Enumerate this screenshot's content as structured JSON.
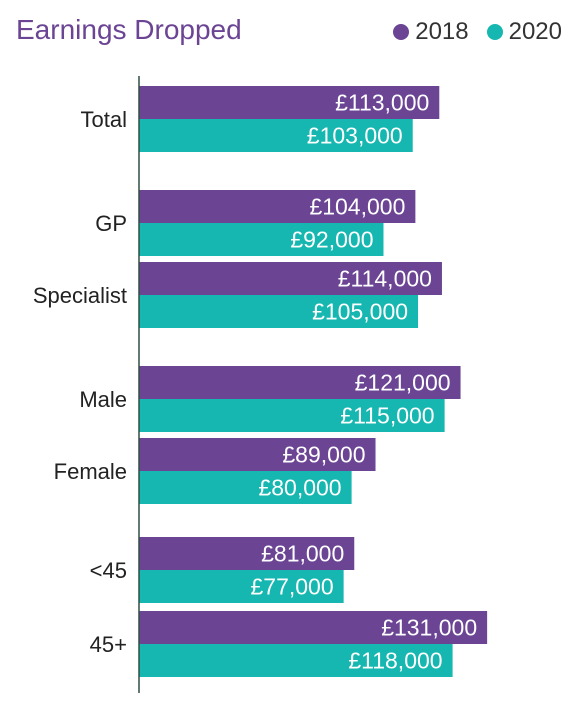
{
  "chart_data": {
    "type": "bar",
    "orientation": "horizontal",
    "title": "Earnings Dropped",
    "xlabel": "",
    "ylabel": "",
    "categories": [
      "Total",
      "GP",
      "Specialist",
      "Male",
      "Female",
      "<45",
      "45+"
    ],
    "series": [
      {
        "name": "2018",
        "color": "#6b4494",
        "values": [
          113000,
          104000,
          114000,
          121000,
          89000,
          81000,
          131000
        ],
        "labels": [
          "£113,000",
          "£104,000",
          "£114,000",
          "£121,000",
          "£89,000",
          "£81,000",
          "£131,000"
        ]
      },
      {
        "name": "2020",
        "color": "#16b7b0",
        "values": [
          103000,
          92000,
          105000,
          115000,
          80000,
          77000,
          118000
        ],
        "labels": [
          "£103,000",
          "£92,000",
          "£105,000",
          "£115,000",
          "£80,000",
          "£77,000",
          "£118,000"
        ]
      }
    ],
    "xlim": [
      0,
      150000
    ],
    "grid": false,
    "legend_position": "top-right"
  }
}
